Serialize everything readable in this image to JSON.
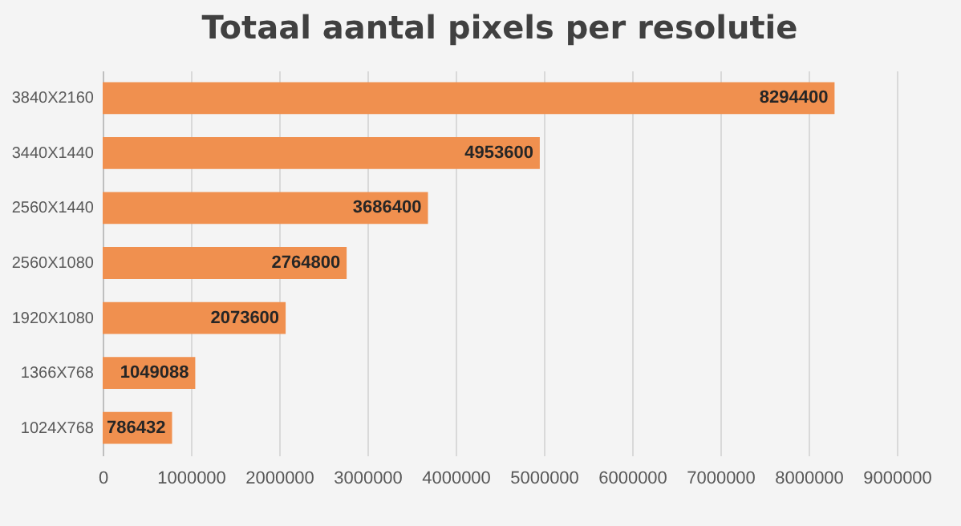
{
  "chart_data": {
    "type": "bar",
    "orientation": "horizontal",
    "title": "Totaal aantal pixels per resolutie",
    "categories": [
      "3840X2160",
      "3440X1440",
      "2560X1440",
      "2560X1080",
      "1920X1080",
      "1366X768",
      "1024X768"
    ],
    "values": [
      8294400,
      4953600,
      3686400,
      2764800,
      2073600,
      1049088,
      786432
    ],
    "color": "#f0904f",
    "data_labels": true,
    "grid": "x",
    "xlim": [
      0,
      9000000
    ],
    "xticks": [
      0,
      1000000,
      2000000,
      3000000,
      4000000,
      5000000,
      6000000,
      7000000,
      8000000,
      9000000
    ]
  }
}
